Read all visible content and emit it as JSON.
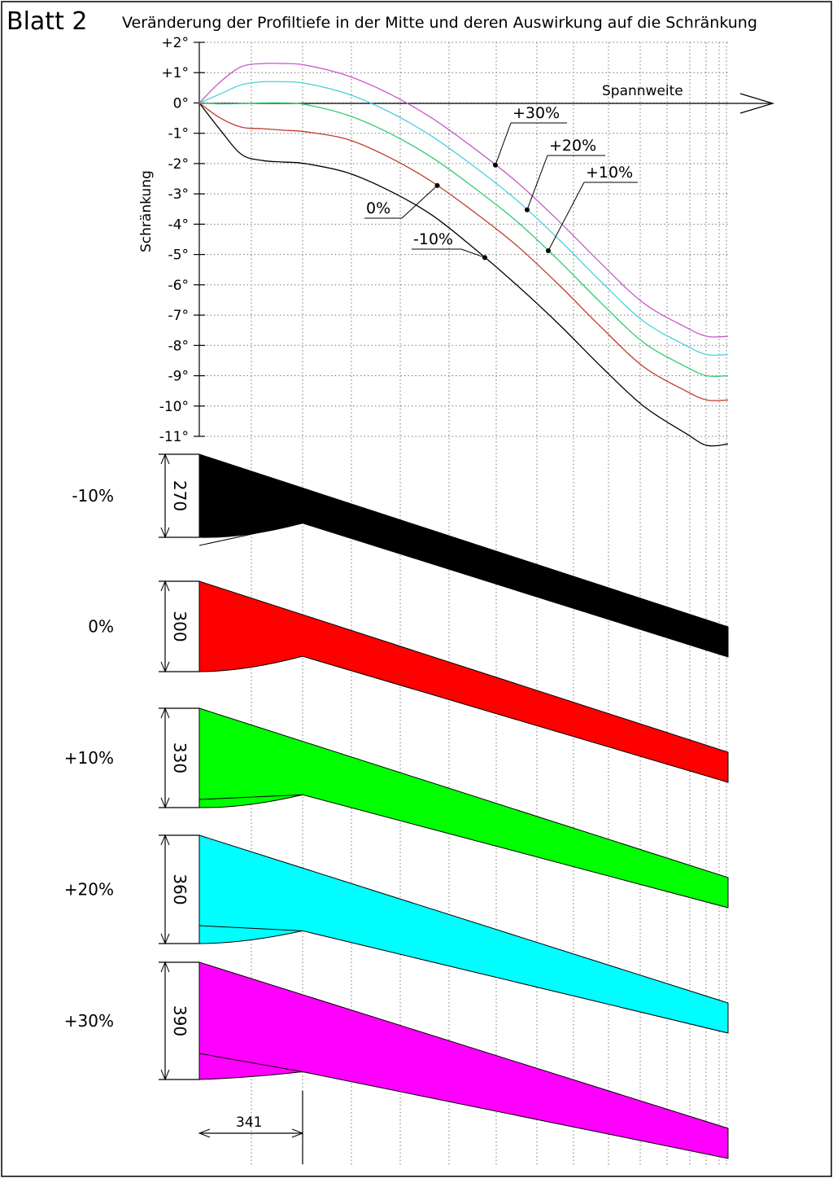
{
  "sheet": {
    "label": "Blatt 2",
    "title": "Veränderung der Profiltiefe in der Mitte und deren Auswirkung auf die Schränkung"
  },
  "chart_data": [
    {
      "type": "line",
      "ylabel": "Schränkung",
      "xlabel": "Spannweite",
      "ylim": [
        -11,
        2
      ],
      "y_ticks": [
        "+2°",
        "+1°",
        "0°",
        "-1°",
        "-2°",
        "-3°",
        "-4°",
        "-5°",
        "-6°",
        "-7°",
        "-8°",
        "-9°",
        "-10°",
        "-11°"
      ],
      "grid": true,
      "x": [
        0,
        0.04,
        0.08,
        0.12,
        0.16,
        0.2,
        0.28,
        0.36,
        0.44,
        0.52,
        0.6,
        0.68,
        0.76,
        0.84,
        0.92,
        0.96,
        1.0
      ],
      "series": [
        {
          "name": "-10%",
          "color": "#000000",
          "values": [
            0,
            -0.9,
            -1.7,
            -1.9,
            -1.95,
            -2.0,
            -2.3,
            -2.9,
            -3.7,
            -4.8,
            -6.0,
            -7.3,
            -8.7,
            -10.0,
            -10.9,
            -11.3,
            -11.25
          ]
        },
        {
          "name": "0%",
          "color": "#c0392b",
          "values": [
            0,
            -0.5,
            -0.8,
            -0.85,
            -0.9,
            -0.95,
            -1.2,
            -1.8,
            -2.6,
            -3.6,
            -4.7,
            -6.0,
            -7.4,
            -8.7,
            -9.5,
            -9.8,
            -9.8
          ]
        },
        {
          "name": "+10%",
          "color": "#2ecc71",
          "values": [
            0,
            -0.03,
            -0.02,
            0,
            0,
            -0.05,
            -0.4,
            -1.0,
            -1.8,
            -2.8,
            -3.9,
            -5.2,
            -6.6,
            -7.9,
            -8.7,
            -9.0,
            -9.0
          ]
        },
        {
          "name": "+20%",
          "color": "#48d1e0",
          "values": [
            0,
            0.3,
            0.6,
            0.7,
            0.7,
            0.65,
            0.3,
            -0.3,
            -1.1,
            -2.1,
            -3.2,
            -4.5,
            -5.9,
            -7.2,
            -8.0,
            -8.3,
            -8.3
          ]
        },
        {
          "name": "+30%",
          "color": "#c85ac8",
          "values": [
            0,
            0.7,
            1.2,
            1.3,
            1.3,
            1.25,
            0.9,
            0.3,
            -0.5,
            -1.5,
            -2.6,
            -3.9,
            -5.3,
            -6.6,
            -7.4,
            -7.7,
            -7.7
          ]
        }
      ],
      "annotations": [
        "+30%",
        "+20%",
        "+10%",
        "0%",
        "-10%"
      ]
    }
  ],
  "profiles": [
    {
      "label": "-10%",
      "chord": "270",
      "color": "#000000",
      "leading_drop": 0.03
    },
    {
      "label": "0%",
      "chord": "300",
      "color": "#ff0000",
      "leading_drop": 0
    },
    {
      "label": "+10%",
      "chord": "330",
      "color": "#00ff00",
      "leading_drop": 0.02
    },
    {
      "label": "+20%",
      "chord": "360",
      "color": "#00ffff",
      "leading_drop": 0.05
    },
    {
      "label": "+30%",
      "chord": "390",
      "color": "#ff00ff",
      "leading_drop": 0.06
    }
  ],
  "dimension": {
    "value": "341"
  }
}
